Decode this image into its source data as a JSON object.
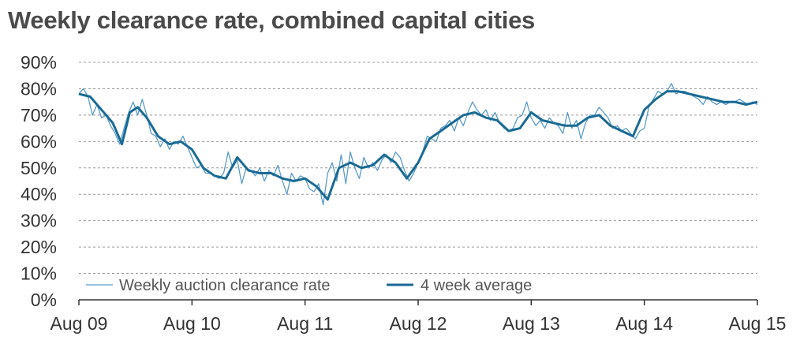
{
  "chart_data": {
    "type": "line",
    "title": "Weekly clearance rate, combined capital cities",
    "xlabel": "",
    "ylabel": "",
    "x_tick_labels": [
      "Aug 09",
      "Aug 10",
      "Aug 11",
      "Aug 12",
      "Aug 13",
      "Aug 14",
      "Aug 15"
    ],
    "y_tick_labels": [
      "0%",
      "10%",
      "20%",
      "30%",
      "40%",
      "50%",
      "60%",
      "70%",
      "80%",
      "90%"
    ],
    "ylim": [
      0,
      90
    ],
    "xlim": [
      0,
      6
    ],
    "grid": "horizontal dashed",
    "legend_position": "bottom-left",
    "colors": {
      "weekly": "#5b9bc8",
      "average": "#1a6a94",
      "grid": "#999999",
      "axis": "#333333",
      "title": "#4a4a4a"
    },
    "series": [
      {
        "name": "Weekly auction clearance rate",
        "x": [
          0.0,
          0.04,
          0.08,
          0.12,
          0.16,
          0.2,
          0.24,
          0.28,
          0.32,
          0.36,
          0.4,
          0.44,
          0.48,
          0.52,
          0.56,
          0.6,
          0.64,
          0.68,
          0.72,
          0.76,
          0.8,
          0.84,
          0.88,
          0.92,
          0.96,
          1.0,
          1.04,
          1.08,
          1.12,
          1.16,
          1.2,
          1.24,
          1.28,
          1.32,
          1.36,
          1.4,
          1.44,
          1.48,
          1.52,
          1.56,
          1.6,
          1.64,
          1.68,
          1.72,
          1.76,
          1.8,
          1.84,
          1.88,
          1.92,
          1.96,
          2.0,
          2.04,
          2.08,
          2.12,
          2.16,
          2.2,
          2.24,
          2.28,
          2.32,
          2.36,
          2.4,
          2.44,
          2.48,
          2.52,
          2.56,
          2.6,
          2.64,
          2.68,
          2.72,
          2.76,
          2.8,
          2.84,
          2.88,
          2.92,
          2.96,
          3.0,
          3.04,
          3.08,
          3.12,
          3.16,
          3.2,
          3.24,
          3.28,
          3.32,
          3.36,
          3.4,
          3.44,
          3.48,
          3.52,
          3.56,
          3.6,
          3.64,
          3.68,
          3.72,
          3.76,
          3.8,
          3.84,
          3.88,
          3.92,
          3.96,
          4.0,
          4.04,
          4.08,
          4.12,
          4.16,
          4.2,
          4.24,
          4.28,
          4.32,
          4.36,
          4.4,
          4.44,
          4.48,
          4.52,
          4.56,
          4.6,
          4.64,
          4.68,
          4.72,
          4.76,
          4.8,
          4.84,
          4.88,
          4.92,
          4.96,
          5.0,
          5.04,
          5.08,
          5.12,
          5.16,
          5.2,
          5.24,
          5.28,
          5.32,
          5.36,
          5.4,
          5.44,
          5.48,
          5.52,
          5.56,
          5.6,
          5.64,
          5.68,
          5.72,
          5.76,
          5.8,
          5.84,
          5.88,
          5.92,
          5.96,
          6.0
        ],
        "values": [
          78,
          80,
          77,
          70,
          74,
          69,
          70,
          66,
          63,
          59,
          65,
          71,
          75,
          70,
          76,
          70,
          63,
          62,
          58,
          61,
          57,
          60,
          59,
          62,
          58,
          54,
          50,
          51,
          48,
          48,
          47,
          46,
          48,
          56,
          50,
          53,
          44,
          50,
          49,
          47,
          50,
          45,
          49,
          47,
          51,
          45,
          40,
          48,
          45,
          47,
          46,
          42,
          41,
          44,
          36,
          48,
          52,
          45,
          55,
          44,
          56,
          50,
          46,
          54,
          50,
          52,
          49,
          53,
          55,
          52,
          56,
          54,
          49,
          45,
          48,
          52,
          56,
          62,
          61,
          60,
          65,
          66,
          68,
          64,
          69,
          66,
          71,
          75,
          72,
          70,
          72,
          68,
          71,
          67,
          65,
          64,
          65,
          69,
          70,
          75,
          69,
          66,
          68,
          65,
          69,
          67,
          66,
          63,
          71,
          65,
          68,
          61,
          67,
          70,
          70,
          73,
          71,
          69,
          65,
          66,
          64,
          65,
          63,
          61,
          64,
          65,
          73,
          76,
          79,
          78,
          79,
          82,
          78,
          79,
          79,
          78,
          77,
          76,
          74,
          77,
          75,
          74,
          75,
          74,
          75,
          75,
          76,
          75,
          74,
          75,
          74
        ]
      },
      {
        "name": "4 week average",
        "x": [
          0.0,
          0.1,
          0.2,
          0.3,
          0.38,
          0.45,
          0.52,
          0.6,
          0.7,
          0.8,
          0.9,
          1.0,
          1.1,
          1.2,
          1.3,
          1.4,
          1.5,
          1.6,
          1.7,
          1.8,
          1.9,
          2.0,
          2.1,
          2.2,
          2.3,
          2.4,
          2.5,
          2.6,
          2.7,
          2.8,
          2.9,
          3.0,
          3.1,
          3.2,
          3.3,
          3.4,
          3.5,
          3.6,
          3.7,
          3.8,
          3.9,
          4.0,
          4.1,
          4.2,
          4.3,
          4.4,
          4.5,
          4.6,
          4.7,
          4.8,
          4.9,
          5.0,
          5.1,
          5.2,
          5.3,
          5.4,
          5.5,
          5.6,
          5.7,
          5.8,
          5.9,
          6.0
        ],
        "values": [
          78,
          77,
          72,
          67,
          59,
          71,
          73,
          69,
          62,
          59,
          60,
          57,
          50,
          47,
          46,
          54,
          49,
          48,
          48,
          46,
          45,
          46,
          43,
          38,
          50,
          52,
          50,
          51,
          55,
          52,
          46,
          52,
          61,
          64,
          67,
          70,
          71,
          69,
          68,
          64,
          65,
          71,
          68,
          67,
          66,
          66,
          69,
          70,
          66,
          64,
          62,
          72,
          76,
          79,
          79,
          78,
          77,
          76,
          75,
          75,
          74,
          75
        ]
      }
    ]
  }
}
